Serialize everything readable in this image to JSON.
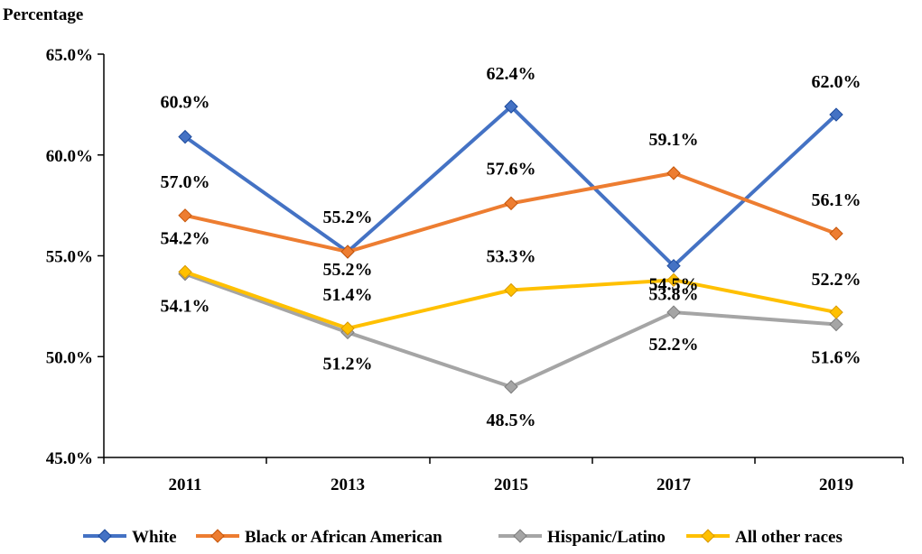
{
  "chart_data": {
    "type": "line",
    "ylabel": "Percentage",
    "xlabel": "",
    "categories": [
      "2011",
      "2013",
      "2015",
      "2017",
      "2019"
    ],
    "ylim": [
      45.0,
      65.0
    ],
    "yticks": [
      45.0,
      50.0,
      55.0,
      60.0,
      65.0
    ],
    "ytick_labels": [
      "45.0%",
      "50.0%",
      "55.0%",
      "60.0%",
      "65.0%"
    ],
    "legend_position": "bottom",
    "series": [
      {
        "name": "White",
        "color": "#4472C4",
        "values": [
          60.9,
          55.2,
          62.4,
          54.5,
          62.0
        ],
        "labels": [
          "60.9%",
          "55.2%",
          "62.4%",
          "54.5%",
          "62.0%"
        ]
      },
      {
        "name": "Black or African American",
        "color": "#ED7D31",
        "values": [
          57.0,
          55.2,
          57.6,
          59.1,
          56.1
        ],
        "labels": [
          "57.0%",
          "55.2%",
          "57.6%",
          "59.1%",
          "56.1%"
        ]
      },
      {
        "name": "Hispanic/Latino",
        "color": "#A5A5A5",
        "values": [
          54.1,
          51.2,
          48.5,
          52.2,
          51.6
        ],
        "labels": [
          "54.1%",
          "51.2%",
          "48.5%",
          "52.2%",
          "51.6%"
        ]
      },
      {
        "name": "All other races",
        "color": "#FFC000",
        "values": [
          54.2,
          51.4,
          53.3,
          53.8,
          52.2
        ],
        "labels": [
          "54.2%",
          "51.4%",
          "53.3%",
          "53.8%",
          "52.2%"
        ]
      }
    ]
  }
}
